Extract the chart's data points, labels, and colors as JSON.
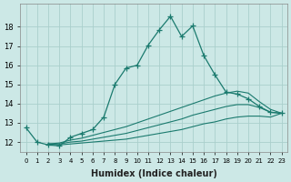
{
  "xlabel": "Humidex (Indice chaleur)",
  "background_color": "#cce8e6",
  "grid_color": "#aacfcc",
  "line_color": "#1a7a6e",
  "xlim": [
    -0.5,
    23.5
  ],
  "ylim": [
    11.5,
    19.2
  ],
  "yticks": [
    12,
    13,
    14,
    15,
    16,
    17,
    18
  ],
  "xticks": [
    0,
    1,
    2,
    3,
    4,
    5,
    6,
    7,
    8,
    9,
    10,
    11,
    12,
    13,
    14,
    15,
    16,
    17,
    18,
    19,
    20,
    21,
    22,
    23
  ],
  "series": [
    {
      "x": [
        0,
        1,
        2,
        3,
        4,
        5,
        6,
        7,
        8,
        9,
        10,
        11,
        12,
        13,
        14,
        15,
        16,
        17,
        18,
        19,
        20,
        21,
        22,
        23
      ],
      "y": [
        12.75,
        12.0,
        11.85,
        11.8,
        12.25,
        12.45,
        12.65,
        13.3,
        15.0,
        15.85,
        16.0,
        17.05,
        17.85,
        18.55,
        17.5,
        18.05,
        16.5,
        15.5,
        14.6,
        14.5,
        14.25,
        13.85,
        13.55,
        13.5
      ],
      "has_markers": true
    },
    {
      "x": [
        2,
        3,
        4,
        5,
        6,
        7,
        8,
        9,
        10,
        11,
        12,
        13,
        14,
        15,
        16,
        17,
        18,
        19,
        20,
        21,
        22,
        23
      ],
      "y": [
        11.9,
        11.95,
        12.1,
        12.2,
        12.35,
        12.5,
        12.65,
        12.8,
        13.0,
        13.2,
        13.4,
        13.6,
        13.8,
        14.0,
        14.2,
        14.4,
        14.55,
        14.65,
        14.55,
        14.1,
        13.7,
        13.5
      ],
      "has_markers": false
    },
    {
      "x": [
        2,
        3,
        4,
        5,
        6,
        7,
        8,
        9,
        10,
        11,
        12,
        13,
        14,
        15,
        16,
        17,
        18,
        19,
        20,
        21,
        22,
        23
      ],
      "y": [
        11.9,
        11.9,
        12.0,
        12.05,
        12.15,
        12.25,
        12.35,
        12.45,
        12.6,
        12.75,
        12.9,
        13.05,
        13.2,
        13.4,
        13.55,
        13.7,
        13.85,
        13.95,
        13.95,
        13.8,
        13.55,
        13.5
      ],
      "has_markers": false
    },
    {
      "x": [
        2,
        3,
        4,
        5,
        6,
        7,
        8,
        9,
        10,
        11,
        12,
        13,
        14,
        15,
        16,
        17,
        18,
        19,
        20,
        21,
        22,
        23
      ],
      "y": [
        11.9,
        11.85,
        11.9,
        11.95,
        12.0,
        12.05,
        12.1,
        12.15,
        12.25,
        12.35,
        12.45,
        12.55,
        12.65,
        12.8,
        12.95,
        13.05,
        13.2,
        13.3,
        13.35,
        13.35,
        13.3,
        13.5
      ],
      "has_markers": false
    }
  ]
}
